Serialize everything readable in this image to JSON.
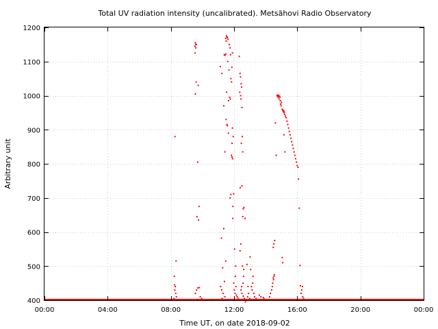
{
  "chart_data": {
    "type": "scatter",
    "title": "Total UV radiation intensity (uncalibrated). Metsähovi Radio Observatory",
    "xlabel": "Time UT, on date 2018-09-02",
    "ylabel": "Arbitrary unit",
    "xlim": [
      0,
      24
    ],
    "ylim": [
      400,
      1200
    ],
    "grid": true,
    "legend": "none",
    "marker_color": "#ff0000",
    "x_ticks": [
      {
        "value": 0,
        "label": "00:00"
      },
      {
        "value": 4,
        "label": "04:00"
      },
      {
        "value": 8,
        "label": "08:00"
      },
      {
        "value": 12,
        "label": "12:00"
      },
      {
        "value": 16,
        "label": "16:00"
      },
      {
        "value": 20,
        "label": "20:00"
      },
      {
        "value": 24,
        "label": "00:00"
      }
    ],
    "y_ticks": [
      {
        "value": 400,
        "label": "400"
      },
      {
        "value": 500,
        "label": "500"
      },
      {
        "value": 600,
        "label": "600"
      },
      {
        "value": 700,
        "label": "700"
      },
      {
        "value": 800,
        "label": "800"
      },
      {
        "value": 900,
        "label": "900"
      },
      {
        "value": 1000,
        "label": "1000"
      },
      {
        "value": 1100,
        "label": "1100"
      },
      {
        "value": 1200,
        "label": "1200"
      }
    ],
    "baseline": {
      "value": 400,
      "x_ranges": [
        [
          0,
          24
        ]
      ]
    },
    "series": [
      {
        "points": [
          [
            8.26,
            880
          ],
          [
            8.33,
            515
          ],
          [
            8.22,
            470
          ],
          [
            8.24,
            445
          ],
          [
            8.28,
            440
          ],
          [
            8.25,
            430
          ],
          [
            8.31,
            420
          ],
          [
            8.35,
            410
          ],
          [
            8.2,
            405
          ],
          [
            9.55,
            1155
          ],
          [
            9.58,
            1150
          ],
          [
            9.52,
            1145
          ],
          [
            9.62,
            1150
          ],
          [
            9.57,
            1140
          ],
          [
            9.53,
            1125
          ],
          [
            9.6,
            1040
          ],
          [
            9.73,
            1030
          ],
          [
            9.55,
            1005
          ],
          [
            9.7,
            805
          ],
          [
            9.78,
            675
          ],
          [
            9.65,
            645
          ],
          [
            9.75,
            635
          ],
          [
            9.8,
            437
          ],
          [
            9.71,
            436
          ],
          [
            9.63,
            430
          ],
          [
            9.55,
            420
          ],
          [
            9.86,
            410
          ],
          [
            9.95,
            405
          ],
          [
            10.1,
            402
          ],
          [
            11.13,
            1085
          ],
          [
            11.38,
            1120
          ],
          [
            11.48,
            1122
          ],
          [
            11.42,
            1118
          ],
          [
            11.52,
            1175
          ],
          [
            11.58,
            1170
          ],
          [
            11.62,
            1165
          ],
          [
            11.55,
            1172
          ],
          [
            11.5,
            1160
          ],
          [
            11.47,
            1168
          ],
          [
            11.7,
            1150
          ],
          [
            11.75,
            1140
          ],
          [
            11.78,
            1120
          ],
          [
            11.6,
            1100
          ],
          [
            11.9,
            1125
          ],
          [
            11.53,
            1010
          ],
          [
            11.68,
            1075
          ],
          [
            11.86,
            1083
          ],
          [
            11.8,
            1050
          ],
          [
            11.84,
            1040
          ],
          [
            11.23,
            1065
          ],
          [
            11.35,
            970
          ],
          [
            11.72,
            995
          ],
          [
            11.76,
            990
          ],
          [
            11.65,
            985
          ],
          [
            11.5,
            930
          ],
          [
            11.55,
            915
          ],
          [
            11.58,
            912
          ],
          [
            11.64,
            890
          ],
          [
            11.9,
            905
          ],
          [
            11.95,
            880
          ],
          [
            11.87,
            860
          ],
          [
            11.83,
            825
          ],
          [
            11.87,
            820
          ],
          [
            11.91,
            815
          ],
          [
            11.42,
            835
          ],
          [
            11.75,
            700
          ],
          [
            11.8,
            710
          ],
          [
            11.97,
            712
          ],
          [
            11.93,
            675
          ],
          [
            11.92,
            640
          ],
          [
            11.2,
            582
          ],
          [
            11.35,
            610
          ],
          [
            11.47,
            515
          ],
          [
            11.28,
            495
          ],
          [
            11.39,
            455
          ],
          [
            11.15,
            440
          ],
          [
            11.22,
            430
          ],
          [
            11.31,
            420
          ],
          [
            11.42,
            410
          ],
          [
            11.25,
            405
          ],
          [
            11.6,
            402
          ],
          [
            11.8,
            400
          ],
          [
            12.03,
            550
          ],
          [
            12.1,
            500
          ],
          [
            12.08,
            470
          ],
          [
            11.98,
            450
          ],
          [
            12.12,
            440
          ],
          [
            12.02,
            430
          ],
          [
            12.06,
            420
          ],
          [
            12.15,
            415
          ],
          [
            12.2,
            410
          ],
          [
            12.25,
            405
          ],
          [
            12.33,
            1115
          ],
          [
            12.38,
            1065
          ],
          [
            12.41,
            1055
          ],
          [
            12.45,
            1035
          ],
          [
            12.48,
            1025
          ],
          [
            12.36,
            1010
          ],
          [
            12.42,
            1000
          ],
          [
            12.44,
            990
          ],
          [
            12.5,
            965
          ],
          [
            12.52,
            880
          ],
          [
            12.46,
            860
          ],
          [
            12.55,
            835
          ],
          [
            12.39,
            730
          ],
          [
            12.5,
            735
          ],
          [
            12.62,
            672
          ],
          [
            12.58,
            668
          ],
          [
            12.55,
            645
          ],
          [
            12.7,
            640
          ],
          [
            12.43,
            565
          ],
          [
            12.38,
            545
          ],
          [
            12.53,
            500
          ],
          [
            12.62,
            490
          ],
          [
            12.6,
            470
          ],
          [
            12.57,
            450
          ],
          [
            12.48,
            440
          ],
          [
            12.44,
            430
          ],
          [
            12.5,
            420
          ],
          [
            12.58,
            412
          ],
          [
            12.65,
            405
          ],
          [
            12.72,
            395
          ],
          [
            12.82,
            505
          ],
          [
            12.88,
            440
          ],
          [
            12.92,
            420
          ],
          [
            12.86,
            410
          ],
          [
            12.99,
            405
          ],
          [
            13.02,
            527
          ],
          [
            13.05,
            490
          ],
          [
            13.2,
            470
          ],
          [
            13.18,
            450
          ],
          [
            13.1,
            440
          ],
          [
            13.14,
            430
          ],
          [
            13.25,
            420
          ],
          [
            13.3,
            410
          ],
          [
            13.4,
            405
          ],
          [
            13.55,
            402
          ],
          [
            13.6,
            415
          ],
          [
            13.7,
            410
          ],
          [
            13.85,
            408
          ],
          [
            13.9,
            404
          ],
          [
            14.05,
            402
          ],
          [
            14.25,
            410
          ],
          [
            14.3,
            420
          ],
          [
            14.38,
            430
          ],
          [
            14.42,
            440
          ],
          [
            14.45,
            450
          ],
          [
            14.5,
            460
          ],
          [
            14.53,
            470
          ],
          [
            14.48,
            465
          ],
          [
            14.55,
            475
          ],
          [
            14.48,
            555
          ],
          [
            14.52,
            565
          ],
          [
            14.57,
            575
          ],
          [
            14.62,
            920
          ],
          [
            14.67,
            825
          ],
          [
            14.72,
            1000
          ],
          [
            14.75,
            998
          ],
          [
            14.78,
            1002
          ],
          [
            14.8,
            995
          ],
          [
            14.83,
            1000
          ],
          [
            14.85,
            990
          ],
          [
            14.88,
            998
          ],
          [
            14.9,
            996
          ],
          [
            14.93,
            985
          ],
          [
            14.95,
            975
          ],
          [
            14.98,
            970
          ],
          [
            15.0,
            980
          ],
          [
            15.05,
            960
          ],
          [
            15.08,
            958
          ],
          [
            15.1,
            955
          ],
          [
            15.13,
            952
          ],
          [
            15.16,
            955
          ],
          [
            15.18,
            950
          ],
          [
            15.2,
            945
          ],
          [
            15.25,
            940
          ],
          [
            15.3,
            935
          ],
          [
            15.35,
            925
          ],
          [
            15.4,
            915
          ],
          [
            15.45,
            905
          ],
          [
            15.5,
            895
          ],
          [
            15.55,
            885
          ],
          [
            15.6,
            875
          ],
          [
            15.65,
            865
          ],
          [
            15.7,
            855
          ],
          [
            15.75,
            845
          ],
          [
            15.8,
            835
          ],
          [
            15.85,
            825
          ],
          [
            15.9,
            815
          ],
          [
            15.95,
            805
          ],
          [
            16.0,
            795
          ],
          [
            16.05,
            790
          ],
          [
            15.15,
            885
          ],
          [
            15.22,
            835
          ],
          [
            15.05,
            525
          ],
          [
            15.08,
            510
          ],
          [
            16.08,
            755
          ],
          [
            16.13,
            670
          ],
          [
            16.18,
            502
          ],
          [
            16.2,
            442
          ],
          [
            16.28,
            430
          ],
          [
            16.33,
            440
          ],
          [
            16.25,
            420
          ],
          [
            16.35,
            410
          ],
          [
            16.4,
            405
          ],
          [
            16.5,
            402
          ],
          [
            16.6,
            400
          ]
        ]
      }
    ]
  }
}
